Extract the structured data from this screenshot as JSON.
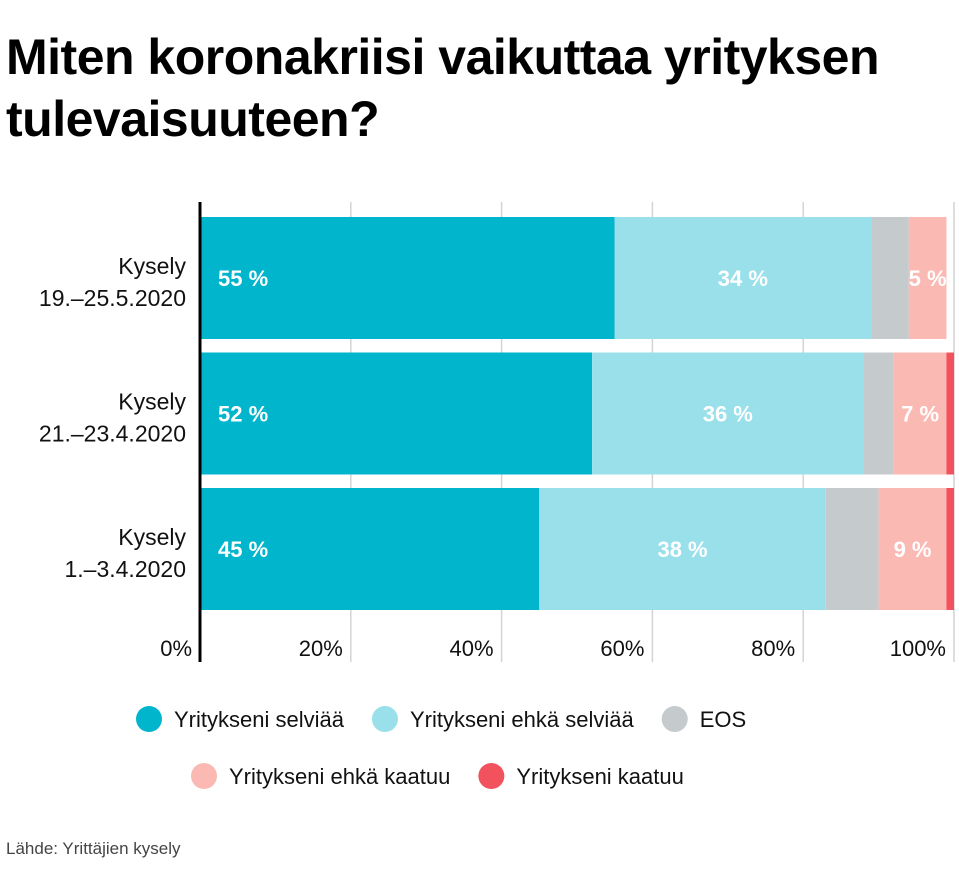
{
  "title": "Miten koronakriisi vaikuttaa yrityksen tulevaisuuteen?",
  "source": "Lähde: Yrittäjien kysely",
  "colors": {
    "selviaa": "#00b5cc",
    "ehka_selviaa": "#9ae0ea",
    "eos": "#c5cacd",
    "ehka_kaatuu": "#fbb9b3",
    "kaatuu": "#f2515e"
  },
  "chart_data": {
    "type": "bar",
    "orientation": "horizontal",
    "stacked": true,
    "categories": [
      {
        "line1": "Kysely",
        "line2": "19.–25.5.2020"
      },
      {
        "line1": "Kysely",
        "line2": "21.–23.4.2020"
      },
      {
        "line1": "Kysely",
        "line2": "1.–3.4.2020"
      }
    ],
    "series": [
      {
        "name": "Yritykseni selviää",
        "color_key": "selviaa",
        "values": [
          55,
          52,
          45
        ],
        "labels": [
          "55 %",
          "52 %",
          "45 %"
        ]
      },
      {
        "name": "Yritykseni ehkä selviää",
        "color_key": "ehka_selviaa",
        "values": [
          34,
          36,
          38
        ],
        "labels": [
          "34 %",
          "36 %",
          "38 %"
        ]
      },
      {
        "name": "EOS",
        "color_key": "eos",
        "values": [
          5,
          4,
          7
        ],
        "labels": [
          "",
          "",
          ""
        ]
      },
      {
        "name": "Yritykseni ehkä kaatuu",
        "color_key": "ehka_kaatuu",
        "values": [
          5,
          7,
          9
        ],
        "labels": [
          "5 %",
          "7 %",
          "9 %"
        ]
      },
      {
        "name": "Yritykseni kaatuu",
        "color_key": "kaatuu",
        "values": [
          0,
          1,
          1
        ],
        "labels": [
          "",
          "",
          ""
        ]
      }
    ],
    "xlim": [
      0,
      100
    ],
    "x_ticks": [
      "0%",
      "20%",
      "40%",
      "60%",
      "80%",
      "100%"
    ],
    "grid": true,
    "legend_position": "bottom"
  }
}
